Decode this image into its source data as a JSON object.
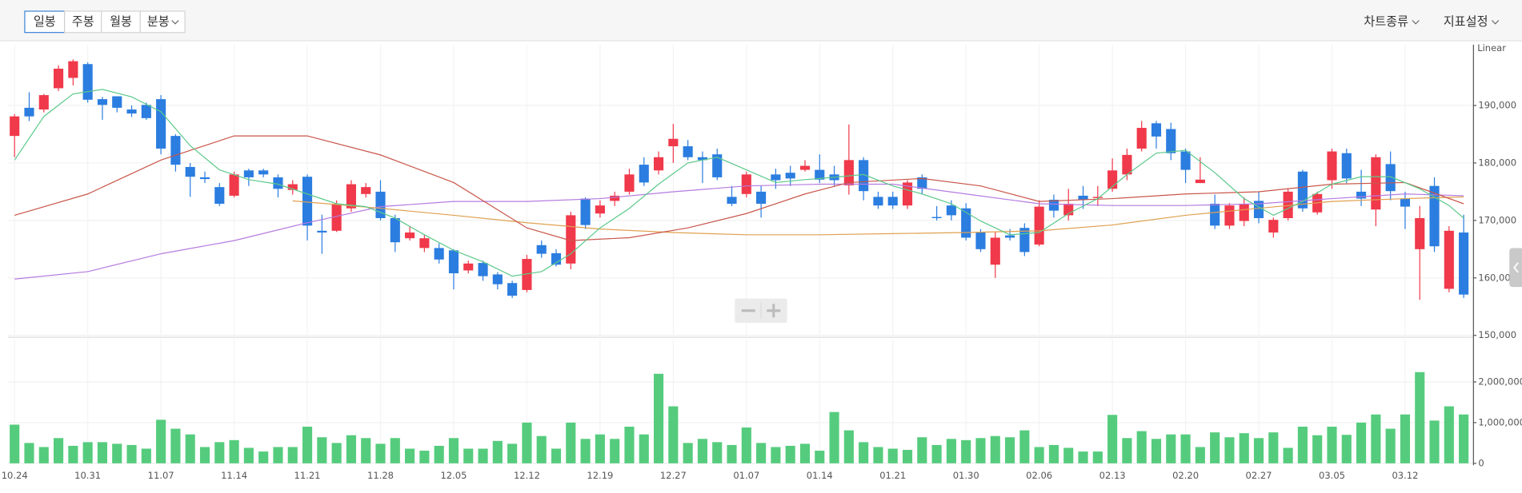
{
  "toolbar": {
    "intervals": [
      "일봉",
      "주봉",
      "월봉",
      "분봉"
    ],
    "selected": 0,
    "menus": [
      "차트종류",
      "지표설정"
    ]
  },
  "chart_data": [
    {
      "type": "candlestick",
      "y_scale_label": "Linear",
      "categories": [
        "10.24",
        null,
        null,
        null,
        null,
        "10.31",
        null,
        null,
        null,
        null,
        "11.07",
        null,
        null,
        null,
        null,
        "11.14",
        null,
        null,
        null,
        null,
        "11.21",
        null,
        null,
        null,
        null,
        "11.28",
        null,
        null,
        null,
        null,
        "12.05",
        null,
        null,
        null,
        null,
        "12.12",
        null,
        null,
        null,
        null,
        "12.19",
        null,
        null,
        null,
        null,
        "12.27",
        null,
        null,
        null,
        null,
        "01.07",
        null,
        null,
        null,
        null,
        "01.14",
        null,
        null,
        null,
        null,
        "01.21",
        null,
        null,
        null,
        null,
        "01.30",
        null,
        null,
        null,
        null,
        "02.06",
        null,
        null,
        null,
        null,
        "02.13",
        null,
        null,
        null,
        null,
        "02.20",
        null,
        null,
        null,
        null,
        "02.27",
        null,
        null,
        null,
        null,
        "03.05",
        null,
        null,
        null,
        null,
        "03.12",
        null,
        null,
        null,
        null
      ],
      "open": [
        184700,
        189600,
        189300,
        193000,
        194800,
        197200,
        191100,
        191600,
        189300,
        190100,
        191100,
        184700,
        179300,
        177500,
        175800,
        174300,
        178700,
        178700,
        177500,
        175300,
        177600,
        168200,
        168200,
        172100,
        174600,
        175000,
        170400,
        166900,
        165200,
        165200,
        164800,
        161300,
        162600,
        160600,
        159100,
        157900,
        165700,
        164300,
        162500,
        173800,
        171200,
        173400,
        175000,
        179700,
        178700,
        182900,
        182900,
        181000,
        181500,
        174100,
        174600,
        175000,
        178000,
        178300,
        178800,
        178800,
        178000,
        176100,
        180500,
        174100,
        174100,
        172600,
        177500,
        170600,
        172600,
        172100,
        167900,
        162300,
        167400,
        168700,
        165800,
        173600,
        170900,
        174300,
        173900,
        175500,
        178000,
        182500,
        186900,
        185900,
        182000,
        176500,
        172900,
        169100,
        169900,
        173400,
        167900,
        170400,
        178500,
        171400,
        177000,
        181700,
        175000,
        171900,
        179800,
        173800,
        165000,
        176000,
        158100,
        167900
      ],
      "high": [
        188500,
        192300,
        192000,
        197000,
        198000,
        197500,
        191500,
        191600,
        190000,
        190500,
        191800,
        185000,
        180000,
        178500,
        176500,
        178500,
        179000,
        179000,
        178000,
        177000,
        178000,
        171000,
        173500,
        177000,
        176500,
        177000,
        171000,
        169000,
        167500,
        166000,
        165000,
        163000,
        163000,
        161000,
        159500,
        164000,
        166500,
        165000,
        171500,
        174000,
        173500,
        175000,
        179000,
        181000,
        182000,
        186800,
        184000,
        182000,
        182500,
        176000,
        178500,
        176000,
        179000,
        179500,
        180500,
        181500,
        179500,
        186700,
        181000,
        175000,
        175000,
        177000,
        178000,
        172500,
        173500,
        173000,
        168500,
        168000,
        168500,
        169500,
        173500,
        174500,
        175500,
        176000,
        176000,
        180800,
        182500,
        187300,
        187300,
        187000,
        182500,
        181000,
        174500,
        173000,
        174000,
        175000,
        170500,
        175500,
        178800,
        175000,
        182500,
        182500,
        178800,
        181500,
        182000,
        175000,
        172500,
        177500,
        169000,
        171000
      ],
      "low": [
        181000,
        187300,
        188800,
        192500,
        193500,
        190500,
        187500,
        188800,
        188000,
        187500,
        181500,
        178500,
        174100,
        176500,
        172500,
        174000,
        176000,
        177500,
        174000,
        174500,
        166500,
        164200,
        168000,
        171500,
        174000,
        170000,
        164500,
        166500,
        164500,
        162500,
        158000,
        160800,
        159500,
        158000,
        156500,
        157500,
        163500,
        162000,
        161500,
        168500,
        170500,
        172500,
        174500,
        176000,
        178000,
        180000,
        180500,
        176500,
        177000,
        172500,
        174000,
        170500,
        175500,
        176000,
        178500,
        176500,
        176000,
        174500,
        173500,
        172000,
        172000,
        172000,
        174500,
        170000,
        170000,
        166500,
        164500,
        160000,
        166500,
        163800,
        165500,
        170500,
        170000,
        172000,
        172500,
        175000,
        177000,
        182000,
        182500,
        180500,
        176500,
        176500,
        168500,
        168500,
        169000,
        169500,
        167000,
        170000,
        171500,
        171000,
        175500,
        176500,
        172500,
        169000,
        173500,
        168500,
        156200,
        164500,
        157500,
        156500
      ],
      "close": [
        188100,
        188100,
        191800,
        196400,
        197700,
        191000,
        190100,
        189600,
        188600,
        187800,
        182500,
        179700,
        177600,
        177200,
        172900,
        178000,
        177500,
        178000,
        175500,
        176300,
        169100,
        167900,
        172900,
        176300,
        175800,
        170400,
        166200,
        167900,
        166900,
        163200,
        160800,
        162500,
        160300,
        158900,
        156900,
        163300,
        164200,
        162300,
        170900,
        169200,
        172600,
        174300,
        178000,
        176600,
        181000,
        184200,
        181000,
        180500,
        177500,
        172900,
        178000,
        172900,
        177000,
        177300,
        179500,
        177100,
        177000,
        180500,
        175100,
        172600,
        172600,
        176600,
        175500,
        170400,
        170900,
        167000,
        165000,
        167000,
        167000,
        164500,
        172400,
        171700,
        172900,
        173600,
        174100,
        178700,
        181400,
        186100,
        184600,
        181700,
        178800,
        177100,
        169100,
        172600,
        172900,
        170400,
        170100,
        175000,
        172100,
        174600,
        182000,
        177300,
        173800,
        181000,
        175100,
        172400,
        170400,
        165500,
        168200,
        157100
      ],
      "up_color": "#f0394a",
      "down_color": "#2b7de0",
      "series": [
        {
          "color": "#b57be0",
          "x": [
            0,
            5,
            10,
            15,
            20,
            25,
            30,
            35,
            40,
            45,
            50,
            55,
            60,
            65,
            70,
            75,
            80,
            85,
            90,
            95,
            99
          ],
          "values": [
            159800,
            161100,
            164200,
            166500,
            169600,
            172400,
            173300,
            173300,
            173800,
            175000,
            176000,
            176300,
            176300,
            174600,
            172900,
            172600,
            172600,
            172900,
            173800,
            174600,
            174300
          ]
        },
        {
          "color": "#e0a050",
          "x": [
            19,
            25,
            30,
            35,
            40,
            45,
            50,
            55,
            60,
            65,
            70,
            75,
            80,
            85,
            90,
            95,
            99
          ],
          "values": [
            173400,
            172100,
            170900,
            169600,
            168500,
            167900,
            167500,
            167500,
            167700,
            167900,
            168200,
            169200,
            170900,
            172100,
            173300,
            173800,
            174100
          ]
        },
        {
          "color": "#c9564a",
          "x": [
            0,
            5,
            10,
            15,
            20,
            25,
            30,
            35,
            38,
            42,
            46,
            50,
            54,
            57,
            62,
            66,
            70,
            75,
            80,
            85,
            90,
            95,
            99
          ],
          "values": [
            170900,
            174600,
            180500,
            184700,
            184700,
            181400,
            176600,
            168700,
            166500,
            167000,
            168700,
            171200,
            174600,
            176600,
            177300,
            176000,
            173300,
            173800,
            174600,
            175000,
            176300,
            176600,
            172900
          ]
        },
        {
          "color": "#5cc98a",
          "x": [
            0,
            2,
            4,
            6,
            8,
            10,
            12,
            14,
            16,
            18,
            20,
            22,
            24,
            26,
            28,
            30,
            32,
            34,
            36,
            38,
            40,
            42,
            44,
            46,
            48,
            50,
            52,
            54,
            56,
            58,
            60,
            62,
            64,
            66,
            68,
            70,
            72,
            74,
            76,
            78,
            80,
            82,
            84,
            86,
            88,
            90,
            92,
            94,
            96,
            98,
            99
          ],
          "values": [
            180500,
            188100,
            192000,
            192800,
            191500,
            188900,
            183000,
            178800,
            177100,
            176300,
            174600,
            172900,
            172400,
            170400,
            167500,
            164800,
            162800,
            160300,
            161100,
            164200,
            168700,
            172100,
            176300,
            180000,
            181000,
            178800,
            176600,
            177100,
            177500,
            178000,
            176000,
            174600,
            172900,
            169900,
            167500,
            167900,
            171200,
            173800,
            178000,
            181700,
            182200,
            178300,
            173800,
            170900,
            173300,
            176300,
            177600,
            177600,
            175500,
            172600,
            170400
          ]
        }
      ],
      "ylim": [
        150000,
        200000
      ],
      "yticks": [
        {
          "value": 150000,
          "label": "150,000"
        },
        {
          "value": 160000,
          "label": "160,000"
        },
        {
          "value": 170000,
          "label": "170,000"
        },
        {
          "value": 180000,
          "label": "180,000"
        },
        {
          "value": 190000,
          "label": "190,000"
        }
      ],
      "grid": true
    },
    {
      "type": "bar",
      "color": "#55cc7d",
      "values": [
        950000,
        500000,
        400000,
        620000,
        430000,
        520000,
        520000,
        480000,
        450000,
        360000,
        1070000,
        850000,
        710000,
        400000,
        520000,
        570000,
        380000,
        290000,
        400000,
        400000,
        900000,
        640000,
        500000,
        690000,
        620000,
        480000,
        620000,
        360000,
        310000,
        430000,
        620000,
        360000,
        360000,
        550000,
        480000,
        1000000,
        670000,
        360000,
        1000000,
        600000,
        710000,
        600000,
        900000,
        710000,
        2200000,
        1400000,
        500000,
        600000,
        520000,
        450000,
        880000,
        500000,
        400000,
        430000,
        480000,
        310000,
        1260000,
        810000,
        520000,
        400000,
        360000,
        330000,
        640000,
        450000,
        600000,
        570000,
        620000,
        670000,
        640000,
        810000,
        400000,
        450000,
        380000,
        290000,
        290000,
        1190000,
        620000,
        790000,
        600000,
        710000,
        710000,
        400000,
        760000,
        640000,
        740000,
        620000,
        760000,
        380000,
        900000,
        690000,
        900000,
        700000,
        1000000,
        1200000,
        850000,
        1200000,
        2240000,
        1050000,
        1400000,
        1200000
      ],
      "ylim": [
        0,
        3000000
      ],
      "yticks": [
        0,
        {
          "value": 1000000,
          "label": "1,000,000"
        },
        {
          "value": 2000000,
          "label": "2,000,000"
        }
      ],
      "grid": true
    }
  ]
}
